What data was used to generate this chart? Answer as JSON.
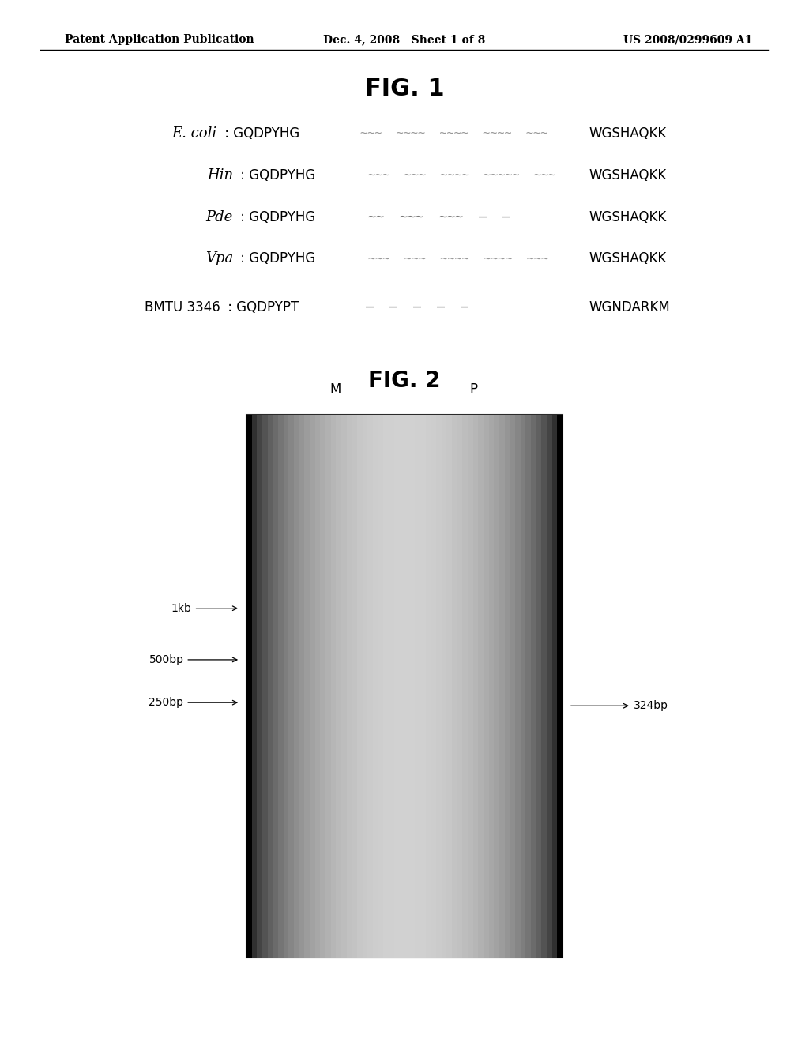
{
  "page_header_left": "Patent Application Publication",
  "page_header_center": "Dec. 4, 2008   Sheet 1 of 8",
  "page_header_right": "US 2008/0299609 A1",
  "fig1_title": "FIG. 1",
  "fig2_title": "FIG. 2",
  "fig1_rows": [
    {
      "label_italic": "E. coli",
      "label_normal": " : GQDPYHG",
      "dots": "~~~  ~~~~  ~~~~  ~~~~  ~~~",
      "end_seq": "WGSHAQKK"
    },
    {
      "label_italic": "Hin",
      "label_normal": " : GQDPYHG",
      "dots": "~~~  ~~~  ~~~~  ~~~~~  ~~~",
      "end_seq": "WGSHAQKK"
    },
    {
      "label_italic": "Pde",
      "label_normal": " : GQDPYHG",
      "dots": "~~  ~~~  ~~~  —  —",
      "end_seq": "WGSHAQKK"
    },
    {
      "label_italic": "Vpa",
      "label_normal": " : GQDPYHG",
      "dots": "~~~  ~~~  ~~~~  ~~~~  ~~~",
      "end_seq": "WGSHAQKK"
    },
    {
      "label_italic": "",
      "label_bold": "BMTU 3346",
      "label_normal": " : GQDPYPT",
      "dots": "—  —  —  —  —",
      "end_seq": "WGNDARKM"
    }
  ],
  "fig2": {
    "annotation_324bp": "324bp"
  },
  "background_color": "#ffffff",
  "text_color": "#000000"
}
